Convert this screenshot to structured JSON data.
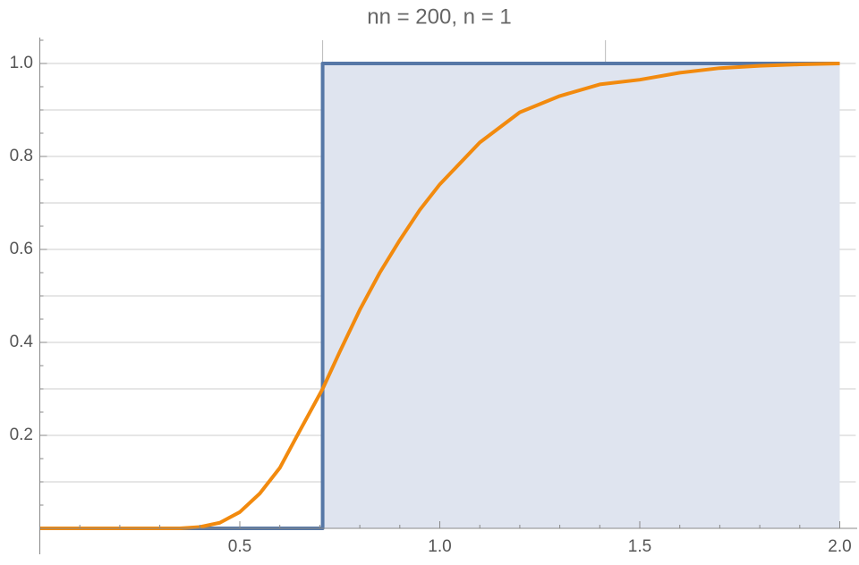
{
  "chart_data": {
    "type": "line",
    "title": "nn = 200, n = 1",
    "xlim": [
      0,
      2.04
    ],
    "ylim": [
      0,
      1.05
    ],
    "xticks": [
      0.5,
      {
        "value": 1,
        "label": "1.0"
      },
      1.5,
      {
        "value": 2,
        "label": "2.0"
      }
    ],
    "yticks": [
      0.2,
      0.4,
      0.6,
      0.8,
      {
        "value": 1,
        "label": "1.0"
      }
    ],
    "xminorticks": [
      0.1,
      0.2,
      0.3,
      0.4,
      0.6,
      0.7,
      0.8,
      0.9,
      1.1,
      1.2,
      1.3,
      1.4,
      1.6,
      1.7,
      1.8,
      1.9
    ],
    "yminorticks": [
      0.05,
      0.1,
      0.15,
      0.25,
      0.3,
      0.35,
      0.45,
      0.5,
      0.55,
      0.65,
      0.7,
      0.75,
      0.85,
      0.9,
      0.95,
      1.05
    ],
    "xgrid": [
      0.7071,
      1.4142
    ],
    "ygrid": [
      0.1,
      0.2,
      0.3,
      0.4,
      0.5,
      0.6,
      0.7,
      0.8,
      0.9,
      1.0
    ],
    "series": [
      {
        "color": "#5677a6",
        "fill": "#dfe4ef",
        "x": [
          0,
          0.7071,
          0.7071,
          2.0
        ],
        "values": [
          0,
          0,
          1,
          1
        ]
      },
      {
        "color": "#f28a0e",
        "x": [
          0,
          0.35,
          0.4,
          0.45,
          0.5,
          0.55,
          0.6,
          0.65,
          0.7071,
          0.75,
          0.8,
          0.85,
          0.9,
          0.95,
          1.0,
          1.1,
          1.2,
          1.3,
          1.4,
          1.5,
          1.6,
          1.7,
          1.8,
          1.9,
          2.0
        ],
        "values": [
          0,
          0,
          0.003,
          0.012,
          0.035,
          0.075,
          0.13,
          0.21,
          0.3,
          0.38,
          0.47,
          0.55,
          0.62,
          0.685,
          0.74,
          0.83,
          0.895,
          0.93,
          0.955,
          0.965,
          0.98,
          0.99,
          0.995,
          0.998,
          1.0
        ]
      }
    ]
  }
}
